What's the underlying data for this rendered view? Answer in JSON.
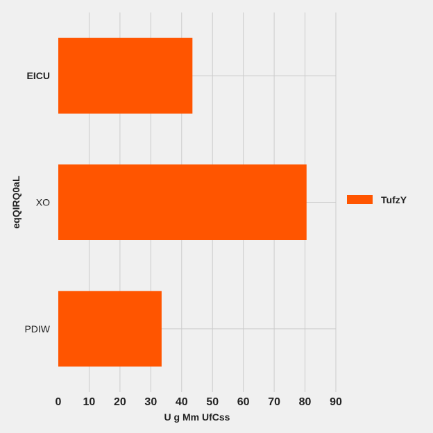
{
  "chart_data": {
    "type": "bar",
    "orientation": "horizontal",
    "categories": [
      "EICU",
      "XO",
      "PDIW"
    ],
    "series": [
      {
        "name": "TufzY",
        "values": [
          43.5,
          80.5,
          33.5
        ],
        "color": "#ff5500"
      }
    ],
    "xlabel": "U g Mm UfCss",
    "ylabel": "eqQIRQ0aL",
    "xlim": [
      0,
      90
    ],
    "xticks": [
      0,
      10,
      20,
      30,
      40,
      50,
      60,
      70,
      80,
      90
    ],
    "grid": true,
    "legend_position": "right",
    "bold_category": "EICU"
  }
}
